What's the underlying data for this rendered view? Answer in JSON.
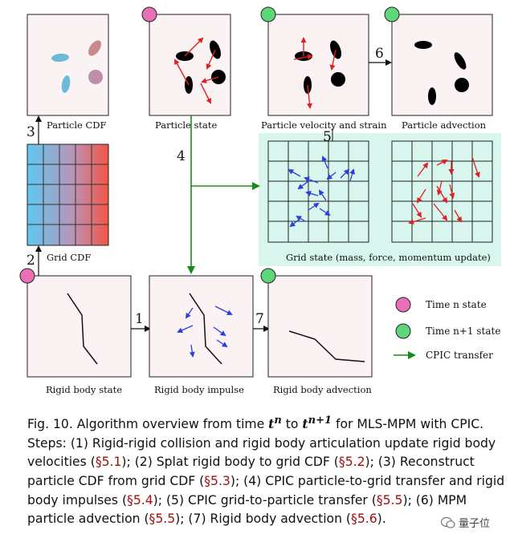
{
  "figure": {
    "labels": {
      "particle_cdf": "Particle CDF",
      "particle_state": "Particle state",
      "particle_velocity_strain": "Particle velocity and strain",
      "particle_advection": "Particle advection",
      "grid_cdf": "Grid CDF",
      "grid_state": "Grid state (mass, force, momentum update)",
      "rigid_body_state": "Rigid body state",
      "rigid_body_impulse": "Rigid body impulse",
      "rigid_body_advection": "Rigid body advection"
    },
    "steps": [
      "1",
      "2",
      "3",
      "4",
      "5",
      "6",
      "7"
    ],
    "legend": {
      "time_n": "Time n state",
      "time_n1": "Time n+1 state",
      "cpic": "CPIC transfer"
    },
    "colors": {
      "time_n": "#e86fb8",
      "time_n1": "#5ed67a",
      "cpic": "#1a8a1a",
      "grid_bg": "#d8f5ee",
      "panel_bg": "#fbf3f3",
      "arrow_blue": "#2a3fe0",
      "arrow_red": "#e02020"
    }
  },
  "caption": {
    "fig": "Fig. 10.",
    "p1": "Algorithm overview from time",
    "t_n": "t",
    "t_n_sup": "n",
    "to": "to",
    "t_n1": "t",
    "t_n1_sup": "n+1",
    "p2": "for MLS-MPM with CPIC. Steps: (1) Rigid-rigid collision and rigid body articulation update rigid body velocities (",
    "r1": "§5.1",
    "p3": "); (2) Splat rigid body to grid CDF (",
    "r2": "§5.2",
    "p4": "); (3) Reconstruct particle CDF from grid CDF (",
    "r3": "§5.3",
    "p5": "); (4) CPIC particle-to-grid transfer and rigid body impulses (",
    "r4": "§5.4",
    "p6": "); (5) CPIC grid-to-particle transfer (",
    "r5": "§5.5",
    "p7": "); (6) MPM particle advection (",
    "r6": "§5.5",
    "p8": "); (7) Rigid body advection (",
    "r7": "§5.6",
    "p9": ")."
  },
  "watermark": "量子位"
}
